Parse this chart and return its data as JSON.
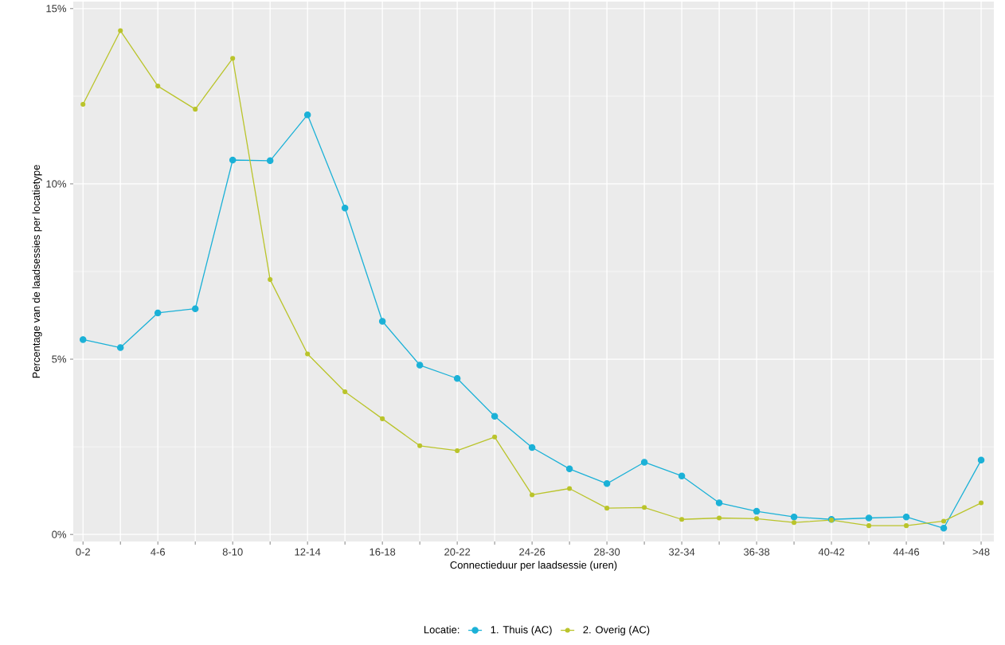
{
  "chart_data": {
    "type": "line",
    "xlabel": "Connectieduur per laadsessie (uren)",
    "ylabel": "Percentage van de laadsessies per locatietype",
    "legend_title": "Locatie:",
    "categories": [
      "0-2",
      null,
      "4-6",
      null,
      "8-10",
      null,
      "12-14",
      null,
      "16-18",
      null,
      "20-22",
      null,
      "24-26",
      null,
      "28-30",
      null,
      "32-34",
      null,
      "36-38",
      null,
      "40-42",
      null,
      "44-46",
      null,
      ">48"
    ],
    "series": [
      {
        "name": "1. Thuis (AC)",
        "color": "#1bb1d7",
        "values": [
          5.56,
          5.33,
          6.32,
          6.44,
          10.68,
          10.66,
          11.97,
          9.31,
          6.08,
          4.83,
          4.45,
          3.37,
          2.48,
          1.87,
          1.45,
          2.06,
          1.67,
          0.9,
          0.66,
          0.5,
          0.43,
          0.47,
          0.5,
          0.18,
          2.12
        ]
      },
      {
        "name": "2. Overig (AC)",
        "color": "#bac42b",
        "values": [
          12.27,
          14.37,
          12.79,
          12.13,
          13.58,
          7.27,
          5.15,
          4.07,
          3.3,
          2.53,
          2.39,
          2.78,
          1.13,
          1.31,
          0.75,
          0.77,
          0.43,
          0.47,
          0.45,
          0.34,
          0.41,
          0.25,
          0.25,
          0.38,
          0.9
        ]
      }
    ],
    "ylim": [
      -0.2,
      15.2
    ],
    "yticks": [
      {
        "value": 0,
        "label": "0%"
      },
      {
        "value": 5,
        "label": "5%"
      },
      {
        "value": 10,
        "label": "10%"
      },
      {
        "value": 15,
        "label": "15%"
      }
    ],
    "grid": true,
    "legend": "bottom",
    "marker": "circle",
    "line_style": "solid"
  }
}
